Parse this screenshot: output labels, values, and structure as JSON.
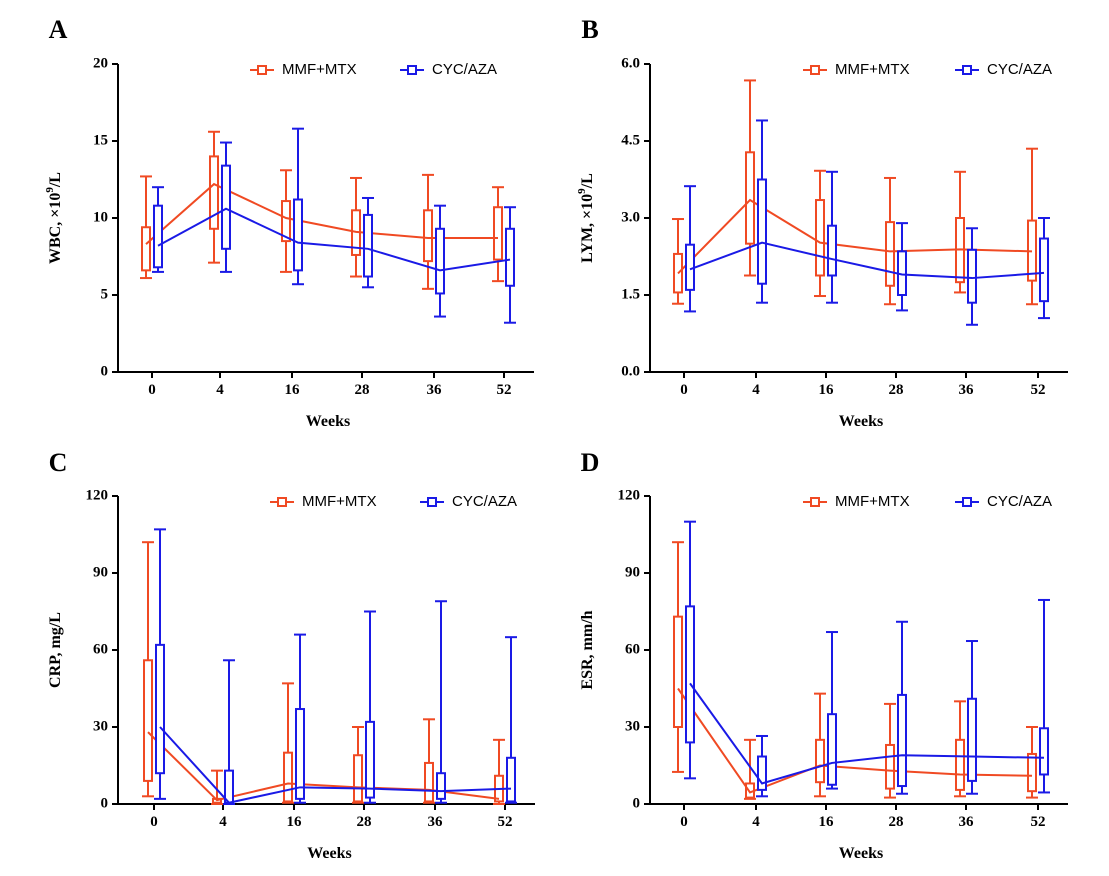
{
  "colors": {
    "MMF+MTX": "#f04a23",
    "CYC/AZA": "#1a1ae6",
    "axis": "#000000"
  },
  "legend_placement": "top-right",
  "chart_data": [
    {
      "panel": "A",
      "type": "box-line",
      "xlabel": "Weeks",
      "ylabel": "WBC, ×10⁹/L",
      "ylabel_parts": {
        "main": "WBC, ×10",
        "sup": "9",
        "tail": "/L"
      },
      "ylim": [
        0,
        20
      ],
      "yticks": [
        "0",
        "5",
        "10",
        "15",
        "20"
      ],
      "categories": [
        "0",
        "4",
        "16",
        "28",
        "36",
        "52"
      ],
      "series": [
        {
          "name": "MMF+MTX",
          "line": [
            8.3,
            12.2,
            10.0,
            9.1,
            8.7,
            8.7
          ],
          "q1": [
            6.6,
            9.3,
            8.5,
            7.6,
            7.2,
            7.3
          ],
          "q3": [
            9.4,
            14.0,
            11.1,
            10.5,
            10.5,
            10.7
          ],
          "min": [
            6.1,
            7.1,
            6.5,
            6.2,
            5.4,
            5.9
          ],
          "max": [
            12.7,
            15.6,
            13.1,
            12.6,
            12.8,
            12.0
          ]
        },
        {
          "name": "CYC/AZA",
          "line": [
            8.2,
            10.6,
            8.4,
            8.0,
            6.6,
            7.3
          ],
          "q1": [
            6.8,
            8.0,
            6.6,
            6.2,
            5.1,
            5.6
          ],
          "q3": [
            10.8,
            13.4,
            11.2,
            10.2,
            9.3,
            9.3
          ],
          "min": [
            6.5,
            6.5,
            5.7,
            5.5,
            3.6,
            3.2
          ],
          "max": [
            12.0,
            14.9,
            15.8,
            11.3,
            10.8,
            10.7
          ]
        }
      ]
    },
    {
      "panel": "B",
      "type": "box-line",
      "xlabel": "Weeks",
      "ylabel": "LYM, ×10⁹/L",
      "ylabel_parts": {
        "main": "LYM, ×10",
        "sup": "9",
        "tail": "/L"
      },
      "ylim": [
        0,
        6
      ],
      "yticks": [
        "0.0",
        "1.5",
        "3.0",
        "4.5",
        "6.0"
      ],
      "categories": [
        "0",
        "4",
        "16",
        "28",
        "36",
        "52"
      ],
      "series": [
        {
          "name": "MMF+MTX",
          "line": [
            1.92,
            3.35,
            2.52,
            2.35,
            2.39,
            2.35
          ],
          "q1": [
            1.55,
            2.5,
            1.88,
            1.68,
            1.75,
            1.78
          ],
          "q3": [
            2.3,
            4.28,
            3.35,
            2.92,
            3.0,
            2.95
          ],
          "min": [
            1.33,
            1.88,
            1.48,
            1.32,
            1.55,
            1.32
          ],
          "max": [
            2.98,
            5.68,
            3.92,
            3.78,
            3.9,
            4.35
          ]
        },
        {
          "name": "CYC/AZA",
          "line": [
            2.0,
            2.52,
            2.2,
            1.9,
            1.83,
            1.93
          ],
          "q1": [
            1.6,
            1.72,
            1.88,
            1.5,
            1.35,
            1.38
          ],
          "q3": [
            2.48,
            3.75,
            2.85,
            2.35,
            2.38,
            2.6
          ],
          "min": [
            1.18,
            1.35,
            1.35,
            1.2,
            0.92,
            1.05
          ],
          "max": [
            3.62,
            4.9,
            3.9,
            2.9,
            2.8,
            3.0
          ]
        }
      ]
    },
    {
      "panel": "C",
      "type": "box-line",
      "xlabel": "Weeks",
      "ylabel": "CRP, mg/L",
      "ylabel_parts": {
        "main": "CRP, mg/L",
        "sup": "",
        "tail": ""
      },
      "ylim": [
        0,
        120
      ],
      "yticks": [
        "0",
        "30",
        "60",
        "90",
        "120"
      ],
      "categories": [
        "0",
        "4",
        "16",
        "28",
        "36",
        "52"
      ],
      "series": [
        {
          "name": "MMF+MTX",
          "line": [
            28,
            1.5,
            8,
            6.5,
            5.5,
            2
          ],
          "q1": [
            9,
            0.5,
            1,
            1,
            1,
            1
          ],
          "q3": [
            56,
            2,
            20,
            19,
            16,
            11
          ],
          "min": [
            3,
            0,
            0.5,
            0.5,
            0.5,
            0
          ],
          "max": [
            102,
            13,
            47,
            30,
            33,
            25
          ]
        },
        {
          "name": "CYC/AZA",
          "line": [
            30,
            0.5,
            6.5,
            6,
            5,
            6
          ],
          "q1": [
            12,
            0.5,
            2,
            2.5,
            2,
            1
          ],
          "q3": [
            62,
            13,
            37,
            32,
            12,
            18
          ],
          "min": [
            2,
            0,
            0.5,
            0.5,
            0.5,
            0.5
          ],
          "max": [
            107,
            56,
            66,
            75,
            79,
            65
          ]
        }
      ]
    },
    {
      "panel": "D",
      "type": "box-line",
      "xlabel": "Weeks",
      "ylabel": "ESR, mm/h",
      "ylabel_parts": {
        "main": "ESR, mm/h",
        "sup": "",
        "tail": ""
      },
      "ylim": [
        0,
        120
      ],
      "yticks": [
        "0",
        "30",
        "60",
        "90",
        "120"
      ],
      "categories": [
        "0",
        "4",
        "16",
        "28",
        "36",
        "52"
      ],
      "series": [
        {
          "name": "MMF+MTX",
          "line": [
            45,
            4.5,
            15,
            13,
            11.5,
            11
          ],
          "q1": [
            30,
            2.5,
            8.5,
            6,
            5.5,
            5
          ],
          "q3": [
            73,
            8,
            25,
            23,
            25,
            19.5
          ],
          "min": [
            12.5,
            2,
            3,
            2.5,
            3,
            2.5
          ],
          "max": [
            102,
            25,
            43,
            39,
            40,
            30
          ]
        },
        {
          "name": "CYC/AZA",
          "line": [
            47,
            8,
            16,
            19,
            18.5,
            18
          ],
          "q1": [
            24,
            5.5,
            7.5,
            7,
            9,
            11.5
          ],
          "q3": [
            77,
            18.5,
            35,
            42.5,
            41,
            29.5
          ],
          "min": [
            10,
            3,
            6,
            4,
            4,
            4.5
          ],
          "max": [
            110,
            26.5,
            67,
            71,
            63.5,
            79.5
          ]
        }
      ]
    }
  ]
}
